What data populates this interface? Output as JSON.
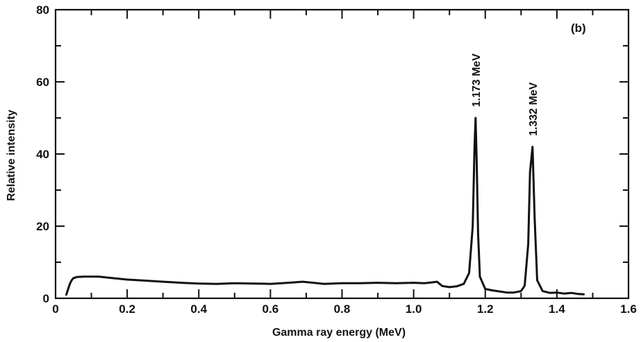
{
  "chart_data": {
    "type": "line",
    "title": "",
    "panel_label": "(b)",
    "xlabel": "Gamma ray energy (MeV)",
    "ylabel": "Relative intensity",
    "xlim": [
      0,
      1.6
    ],
    "ylim": [
      0,
      80
    ],
    "grid": false,
    "x_ticks": [
      0,
      0.2,
      0.4,
      0.6,
      0.8,
      1.0,
      1.2,
      1.4,
      1.6
    ],
    "x_tick_labels": [
      "0",
      "0.2",
      "0.4",
      "0.6",
      "0.8",
      "1.0",
      "1.2",
      "1.4",
      "1.6"
    ],
    "x_minor_ticks": [
      0.1,
      0.3,
      0.5,
      0.7,
      0.9,
      1.1,
      1.3,
      1.5
    ],
    "y_ticks": [
      0,
      20,
      40,
      60,
      80
    ],
    "y_tick_labels": [
      "0",
      "20",
      "40",
      "60",
      "80"
    ],
    "y_minor_ticks": [
      10,
      30,
      50,
      70
    ],
    "series": [
      {
        "x": [
          0.03,
          0.035,
          0.04,
          0.045,
          0.05,
          0.06,
          0.08,
          0.1,
          0.12,
          0.15,
          0.2,
          0.25,
          0.3,
          0.35,
          0.4,
          0.45,
          0.5,
          0.55,
          0.6,
          0.65,
          0.69,
          0.72,
          0.75,
          0.8,
          0.85,
          0.9,
          0.95,
          1.0,
          1.03,
          1.05,
          1.065,
          1.08,
          1.1,
          1.12,
          1.14,
          1.155,
          1.165,
          1.17,
          1.173,
          1.176,
          1.18,
          1.185,
          1.2,
          1.22,
          1.24,
          1.26,
          1.28,
          1.3,
          1.31,
          1.32,
          1.325,
          1.332,
          1.338,
          1.345,
          1.36,
          1.38,
          1.4,
          1.42,
          1.44,
          1.46,
          1.475
        ],
        "y": [
          1.0,
          2.5,
          4.0,
          5.0,
          5.6,
          5.9,
          6.0,
          6.0,
          6.0,
          5.7,
          5.2,
          4.9,
          4.6,
          4.3,
          4.1,
          4.0,
          4.2,
          4.1,
          4.0,
          4.3,
          4.6,
          4.3,
          4.0,
          4.2,
          4.2,
          4.3,
          4.2,
          4.3,
          4.2,
          4.4,
          4.6,
          3.4,
          3.1,
          3.3,
          4.0,
          7.0,
          20.0,
          42.0,
          50.0,
          38.0,
          18.0,
          6.0,
          2.6,
          2.2,
          1.9,
          1.6,
          1.6,
          2.0,
          3.5,
          15.0,
          35.0,
          42.0,
          22.0,
          5.0,
          2.0,
          1.5,
          1.6,
          1.3,
          1.5,
          1.2,
          1.1
        ]
      }
    ],
    "annotations": [
      {
        "text": "1.173 MeV",
        "x": 1.173,
        "y": 53
      },
      {
        "text": "1.332 MeV",
        "x": 1.332,
        "y": 45
      }
    ]
  }
}
